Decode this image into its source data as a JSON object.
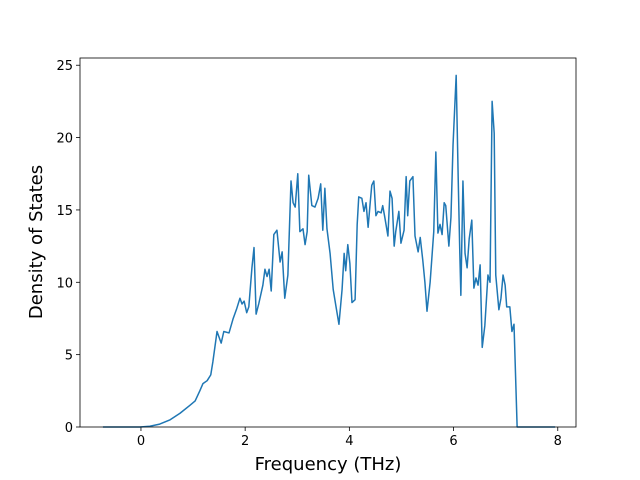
{
  "chart_data": {
    "type": "line",
    "xlabel": "Frequency (THz)",
    "ylabel": "Density of States",
    "color": "#1f77b4",
    "x": [
      -0.73,
      -0.02,
      0.17,
      0.36,
      0.56,
      0.75,
      0.94,
      1.04,
      1.13,
      1.19,
      1.27,
      1.34,
      1.38,
      1.46,
      1.54,
      1.59,
      1.69,
      1.77,
      1.84,
      1.9,
      1.94,
      1.98,
      2.03,
      2.07,
      2.13,
      2.17,
      2.21,
      2.26,
      2.34,
      2.38,
      2.42,
      2.46,
      2.5,
      2.55,
      2.61,
      2.67,
      2.71,
      2.76,
      2.82,
      2.88,
      2.92,
      2.96,
      3.01,
      3.05,
      3.11,
      3.15,
      3.19,
      3.22,
      3.28,
      3.34,
      3.4,
      3.45,
      3.49,
      3.53,
      3.57,
      3.63,
      3.69,
      3.74,
      3.8,
      3.86,
      3.9,
      3.93,
      3.97,
      4.01,
      4.05,
      4.11,
      4.15,
      4.18,
      4.24,
      4.28,
      4.32,
      4.36,
      4.4,
      4.43,
      4.47,
      4.51,
      4.55,
      4.61,
      4.64,
      4.68,
      4.74,
      4.78,
      4.82,
      4.86,
      4.89,
      4.95,
      4.99,
      5.05,
      5.09,
      5.12,
      5.16,
      5.22,
      5.26,
      5.32,
      5.36,
      5.41,
      5.45,
      5.49,
      5.55,
      5.59,
      5.62,
      5.66,
      5.7,
      5.74,
      5.78,
      5.82,
      5.85,
      5.91,
      5.95,
      5.99,
      6.05,
      6.09,
      6.12,
      6.14,
      6.18,
      6.22,
      6.26,
      6.3,
      6.35,
      6.39,
      6.43,
      6.47,
      6.51,
      6.55,
      6.6,
      6.66,
      6.7,
      6.74,
      6.78,
      6.81,
      6.87,
      6.91,
      6.95,
      6.99,
      7.02,
      7.08,
      7.12,
      7.16,
      7.22,
      7.95
    ],
    "values": [
      0,
      0,
      0.05,
      0.2,
      0.5,
      0.95,
      1.5,
      1.8,
      2.5,
      3.0,
      3.2,
      3.6,
      4.5,
      6.6,
      5.8,
      6.6,
      6.5,
      7.5,
      8.2,
      8.9,
      8.5,
      8.7,
      7.9,
      8.3,
      11.0,
      12.4,
      7.8,
      8.5,
      9.8,
      10.9,
      10.4,
      10.9,
      9.4,
      13.3,
      13.6,
      11.4,
      12.1,
      8.9,
      10.5,
      17.0,
      15.5,
      15.2,
      17.5,
      13.5,
      13.7,
      12.6,
      13.5,
      17.4,
      15.3,
      15.2,
      15.8,
      16.8,
      13.6,
      16.5,
      13.7,
      12.0,
      9.5,
      8.4,
      7.1,
      9.5,
      12.0,
      10.8,
      12.6,
      11.3,
      8.6,
      8.8,
      14.0,
      15.9,
      15.8,
      14.9,
      15.5,
      13.8,
      15.5,
      16.7,
      17.0,
      14.6,
      14.9,
      14.8,
      15.3,
      14.5,
      13.2,
      16.3,
      15.8,
      12.5,
      13.5,
      14.9,
      12.7,
      13.6,
      17.3,
      14.6,
      17.0,
      17.3,
      13.2,
      12.1,
      13.1,
      11.5,
      10.0,
      8.0,
      10.0,
      12.0,
      13.5,
      19.0,
      13.4,
      14.0,
      13.3,
      15.5,
      15.3,
      12.5,
      14.5,
      19.5,
      24.3,
      17.0,
      12.0,
      9.1,
      17.0,
      12.0,
      11.0,
      13.0,
      14.3,
      9.6,
      10.3,
      9.8,
      11.2,
      5.5,
      7.0,
      10.5,
      10.0,
      22.5,
      20.3,
      10.5,
      8.1,
      8.9,
      10.5,
      9.8,
      8.3,
      8.3,
      6.6,
      7.1,
      0,
      0
    ],
    "xlim": [
      -1.17,
      8.35
    ],
    "ylim": [
      0,
      25.5
    ],
    "xticks": [
      0,
      2,
      4,
      6,
      8
    ],
    "yticks": [
      0,
      5,
      10,
      15,
      20,
      25
    ]
  }
}
